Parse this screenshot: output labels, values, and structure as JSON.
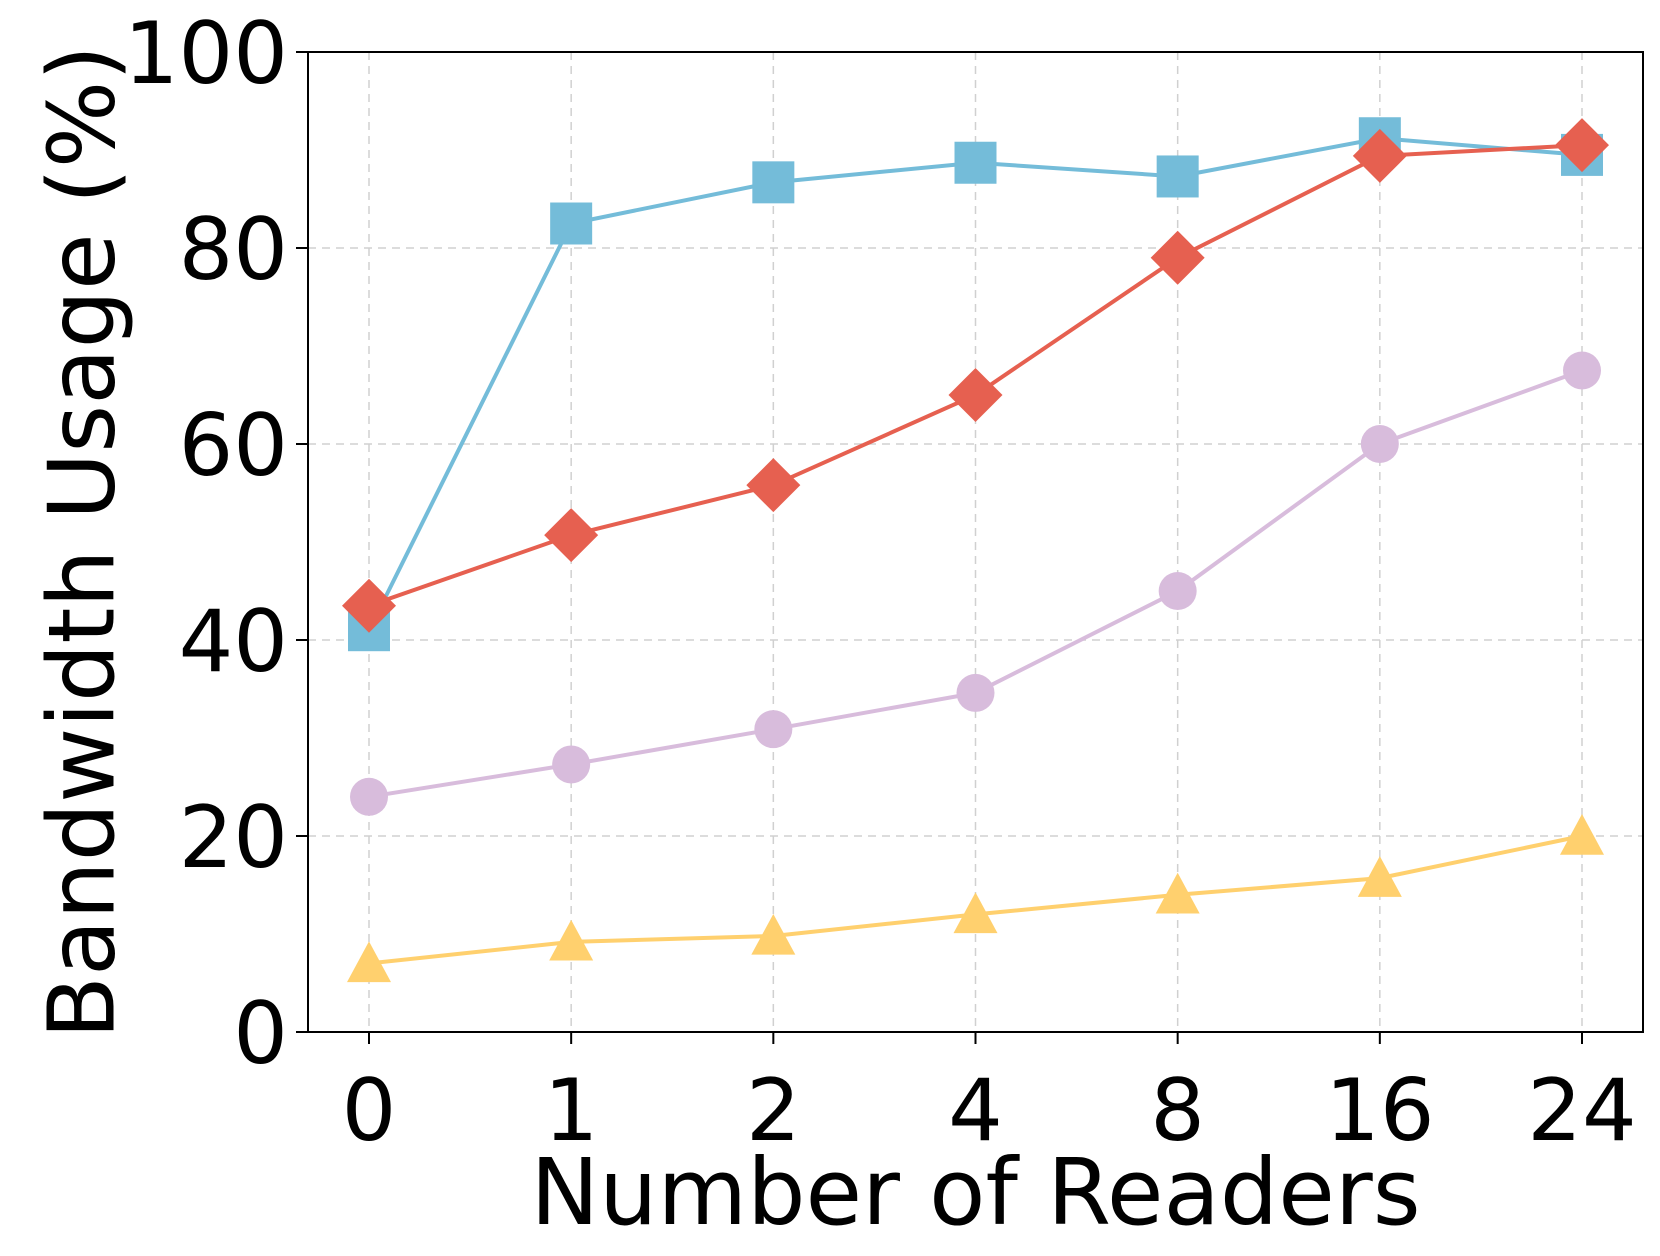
{
  "chart_data": {
    "type": "line",
    "title": "",
    "xlabel": "Number of Readers",
    "ylabel": "Bandwidth Usage (%)",
    "categories": [
      "0",
      "1",
      "2",
      "4",
      "8",
      "16",
      "24"
    ],
    "ylim": [
      0,
      100
    ],
    "yticks": [
      "0",
      "20",
      "40",
      "60",
      "80",
      "100"
    ],
    "grid": true,
    "legend": "none",
    "series": [
      {
        "marker": "square",
        "color": "#74bcd9",
        "values": [
          41,
          82.5,
          86.7,
          88.7,
          87.3,
          91.2,
          89.5
        ]
      },
      {
        "marker": "diamond",
        "color": "#e66050",
        "values": [
          43.5,
          50.7,
          55.8,
          65,
          79,
          89.4,
          90.5
        ]
      },
      {
        "marker": "circle",
        "color": "#d8bcdc",
        "values": [
          24,
          27.3,
          30.9,
          34.6,
          45,
          60,
          67.5
        ]
      },
      {
        "marker": "triangle",
        "color": "#ffd06e",
        "values": [
          7,
          9.2,
          9.8,
          12,
          14,
          15.7,
          20
        ]
      }
    ]
  }
}
